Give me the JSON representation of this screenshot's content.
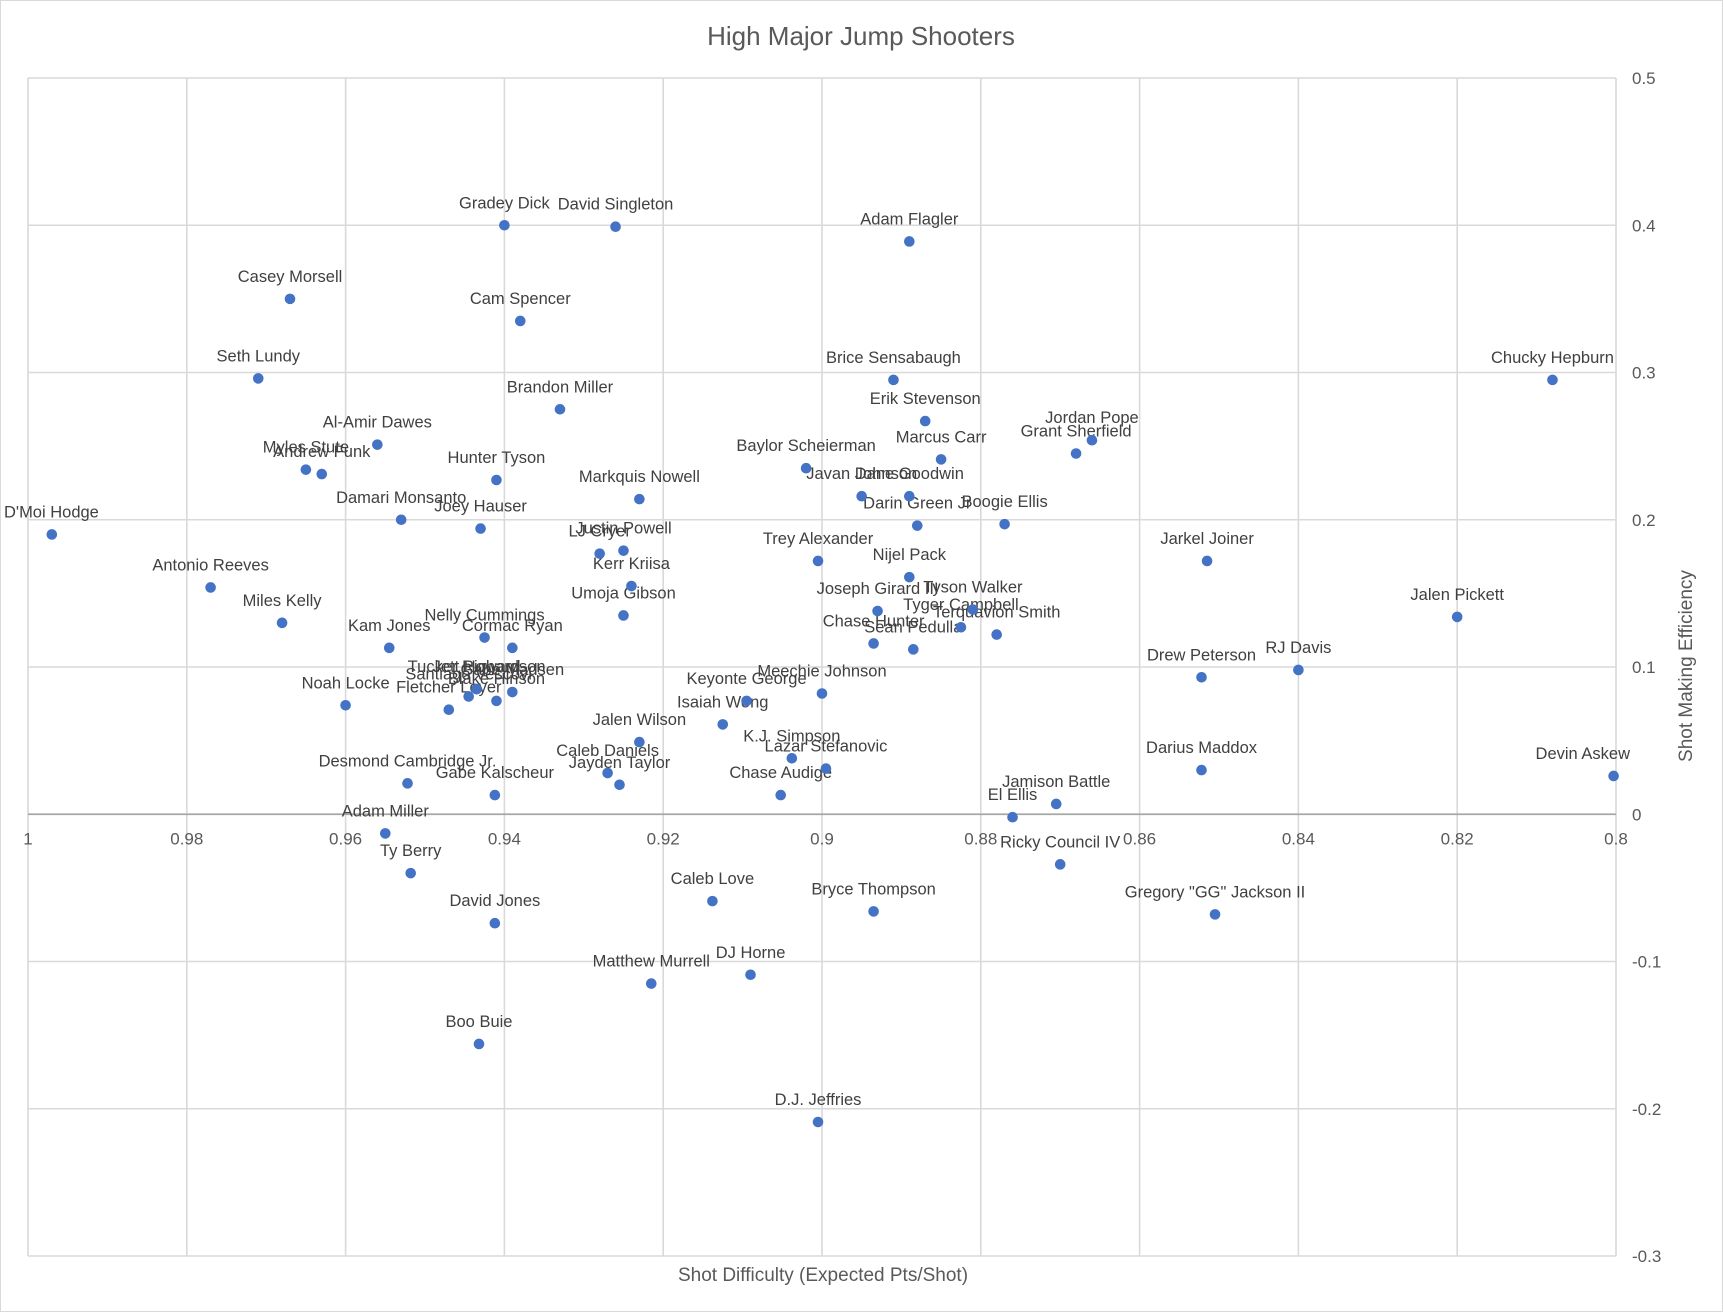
{
  "chart_data": {
    "type": "scatter",
    "title": "High Major Jump Shooters",
    "xlabel": "Shot Difficulty (Expected Pts/Shot)",
    "ylabel": "Shot Making Efficiency",
    "xlim": [
      1.0,
      0.8
    ],
    "x_reversed": true,
    "ylim": [
      -0.3,
      0.5
    ],
    "x_ticks": [
      "1",
      "0.98",
      "0.96",
      "0.94",
      "0.92",
      "0.9",
      "0.88",
      "0.86",
      "0.84",
      "0.82",
      "0.8"
    ],
    "y_ticks": [
      "0.5",
      "0.4",
      "0.3",
      "0.2",
      "0.1",
      "0",
      "-0.1",
      "-0.2",
      "-0.3"
    ],
    "grid": true,
    "y_axis_position": "right",
    "marker_color": "#4472c4",
    "points": [
      {
        "label": "Gradey Dick",
        "x": 0.94,
        "y": 0.4
      },
      {
        "label": "David Singleton",
        "x": 0.926,
        "y": 0.399
      },
      {
        "label": "Adam Flagler",
        "x": 0.889,
        "y": 0.389
      },
      {
        "label": "Casey Morsell",
        "x": 0.967,
        "y": 0.35
      },
      {
        "label": "Cam Spencer",
        "x": 0.938,
        "y": 0.335
      },
      {
        "label": "Seth  Lundy",
        "x": 0.971,
        "y": 0.296
      },
      {
        "label": "Brice Sensabaugh",
        "x": 0.891,
        "y": 0.295
      },
      {
        "label": "Chucky Hepburn",
        "x": 0.808,
        "y": 0.295
      },
      {
        "label": "Brandon Miller",
        "x": 0.933,
        "y": 0.275
      },
      {
        "label": "Erik Stevenson",
        "x": 0.887,
        "y": 0.267
      },
      {
        "label": "Jordan Pope",
        "x": 0.866,
        "y": 0.254
      },
      {
        "label": "Al-Amir Dawes",
        "x": 0.956,
        "y": 0.251
      },
      {
        "label": "Grant  Sherfield",
        "x": 0.868,
        "y": 0.245
      },
      {
        "label": "Marcus Carr",
        "x": 0.885,
        "y": 0.241
      },
      {
        "label": "Myles Stute",
        "x": 0.965,
        "y": 0.234
      },
      {
        "label": "Baylor Scheierman",
        "x": 0.902,
        "y": 0.235
      },
      {
        "label": "Andrew Funk",
        "x": 0.963,
        "y": 0.231
      },
      {
        "label": "Hunter Tyson",
        "x": 0.941,
        "y": 0.227
      },
      {
        "label": "Javan Johnson",
        "x": 0.895,
        "y": 0.216
      },
      {
        "label": "Dane Goodwin",
        "x": 0.889,
        "y": 0.216
      },
      {
        "label": "Markquis Nowell",
        "x": 0.923,
        "y": 0.214
      },
      {
        "label": "Damari Monsanto",
        "x": 0.953,
        "y": 0.2
      },
      {
        "label": "Darin Green Jr",
        "x": 0.888,
        "y": 0.196
      },
      {
        "label": "Boogie Ellis",
        "x": 0.877,
        "y": 0.197
      },
      {
        "label": "Joey Hauser",
        "x": 0.943,
        "y": 0.194
      },
      {
        "label": "D'Moi Hodge",
        "x": 0.997,
        "y": 0.19
      },
      {
        "label": "Justin Powell",
        "x": 0.925,
        "y": 0.179
      },
      {
        "label": "LJ Cryer",
        "x": 0.928,
        "y": 0.177
      },
      {
        "label": "Trey Alexander",
        "x": 0.9005,
        "y": 0.172
      },
      {
        "label": "Jarkel Joiner",
        "x": 0.8515,
        "y": 0.172
      },
      {
        "label": "Nijel Pack",
        "x": 0.889,
        "y": 0.161
      },
      {
        "label": "Kerr  Kriisa",
        "x": 0.924,
        "y": 0.155
      },
      {
        "label": "Antonio Reeves",
        "x": 0.977,
        "y": 0.154
      },
      {
        "label": "Joseph Girard III",
        "x": 0.893,
        "y": 0.138
      },
      {
        "label": "Tyson Walker",
        "x": 0.881,
        "y": 0.139
      },
      {
        "label": "Umoja Gibson",
        "x": 0.925,
        "y": 0.135
      },
      {
        "label": "Jalen Pickett",
        "x": 0.82,
        "y": 0.134
      },
      {
        "label": "Miles Kelly",
        "x": 0.968,
        "y": 0.13
      },
      {
        "label": "Tyger Campbell",
        "x": 0.8825,
        "y": 0.127
      },
      {
        "label": "Terquavion Smith",
        "x": 0.878,
        "y": 0.122
      },
      {
        "label": "Nelly Cummings",
        "x": 0.9425,
        "y": 0.12
      },
      {
        "label": "Chase Hunter",
        "x": 0.8935,
        "y": 0.116
      },
      {
        "label": "Kam Jones",
        "x": 0.9545,
        "y": 0.113
      },
      {
        "label": "Cormac  Ryan",
        "x": 0.939,
        "y": 0.113
      },
      {
        "label": "Sean Pedulla",
        "x": 0.8885,
        "y": 0.112
      },
      {
        "label": "RJ Davis",
        "x": 0.84,
        "y": 0.098
      },
      {
        "label": "Drew Peterson",
        "x": 0.8522,
        "y": 0.093
      },
      {
        "label": "Jett Howard",
        "x": 0.9435,
        "y": 0.085
      },
      {
        "label": "Tucker Richardson",
        "x": 0.9435,
        "y": 0.085
      },
      {
        "label": "Gabe Madsen",
        "x": 0.939,
        "y": 0.083
      },
      {
        "label": "Meechie Johnson",
        "x": 0.9,
        "y": 0.082
      },
      {
        "label": "Santiago Vescovi",
        "x": 0.9445,
        "y": 0.08
      },
      {
        "label": "Blake Hinson",
        "x": 0.941,
        "y": 0.077
      },
      {
        "label": "Keyonte George",
        "x": 0.9095,
        "y": 0.077
      },
      {
        "label": "Noah Locke",
        "x": 0.96,
        "y": 0.074
      },
      {
        "label": "Fletcher Loyer",
        "x": 0.947,
        "y": 0.071
      },
      {
        "label": "Isaiah Wong",
        "x": 0.9125,
        "y": 0.061
      },
      {
        "label": "Jalen Wilson",
        "x": 0.923,
        "y": 0.049
      },
      {
        "label": "K.J. Simpson",
        "x": 0.9038,
        "y": 0.038
      },
      {
        "label": "Lazar Stefanovic",
        "x": 0.8995,
        "y": 0.031
      },
      {
        "label": "Darius Maddox",
        "x": 0.8522,
        "y": 0.03
      },
      {
        "label": "Caleb Daniels",
        "x": 0.927,
        "y": 0.028
      },
      {
        "label": "Devin Askew",
        "x": 0.8003,
        "y": 0.026
      },
      {
        "label": "Desmond Cambridge Jr.",
        "x": 0.9522,
        "y": 0.021
      },
      {
        "label": "Jayden Taylor",
        "x": 0.9255,
        "y": 0.02
      },
      {
        "label": "Gabe Kalscheur",
        "x": 0.9412,
        "y": 0.013
      },
      {
        "label": "Chase  Audige",
        "x": 0.9052,
        "y": 0.013
      },
      {
        "label": "Jamison Battle",
        "x": 0.8705,
        "y": 0.007
      },
      {
        "label": "El Ellis",
        "x": 0.876,
        "y": -0.002
      },
      {
        "label": "Adam Miller",
        "x": 0.955,
        "y": -0.013
      },
      {
        "label": "Ricky Council IV",
        "x": 0.87,
        "y": -0.034
      },
      {
        "label": "Ty Berry",
        "x": 0.9518,
        "y": -0.04
      },
      {
        "label": "Caleb Love",
        "x": 0.9138,
        "y": -0.059
      },
      {
        "label": "Bryce Thompson",
        "x": 0.8935,
        "y": -0.066
      },
      {
        "label": "Gregory \"GG\" Jackson II",
        "x": 0.8505,
        "y": -0.068
      },
      {
        "label": "David Jones",
        "x": 0.9412,
        "y": -0.074
      },
      {
        "label": "DJ Horne",
        "x": 0.909,
        "y": -0.109
      },
      {
        "label": "Matthew Murrell",
        "x": 0.9215,
        "y": -0.115
      },
      {
        "label": "Boo  Buie",
        "x": 0.9432,
        "y": -0.156
      },
      {
        "label": "D.J. Jeffries",
        "x": 0.9005,
        "y": -0.209
      }
    ]
  }
}
